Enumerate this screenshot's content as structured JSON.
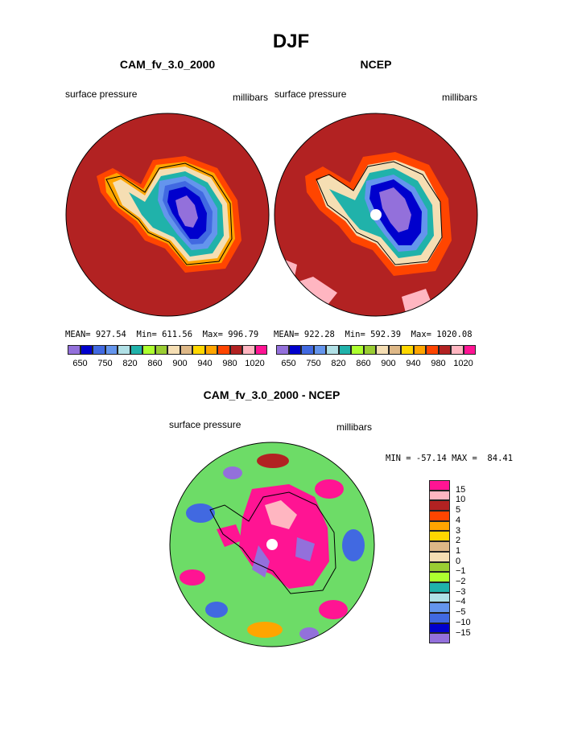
{
  "page": {
    "title": "DJF"
  },
  "panels": [
    {
      "title": "CAM_fv_3.0_2000",
      "left_label": "surface pressure",
      "right_label": "millibars",
      "stats": "MEAN= 927.54  Min= 611.56  Max= 996.79"
    },
    {
      "title": "NCEP",
      "left_label": "surface pressure",
      "right_label": "millibars",
      "stats": "MEAN= 922.28  Min= 592.39  Max= 1020.08"
    },
    {
      "title": "CAM_fv_3.0_2000 - NCEP",
      "left_label": "surface pressure",
      "right_label": "millibars",
      "stats": "MIN = -57.14 MAX =  84.41"
    }
  ],
  "legend_pressure": {
    "colors": [
      "#9370db",
      "#0000cd",
      "#4169e1",
      "#6495ed",
      "#b0e0e6",
      "#20b2aa",
      "#adff2f",
      "#9acd32",
      "#f5deb3",
      "#deb887",
      "#ffd700",
      "#ffa500",
      "#ff4500",
      "#b22222",
      "#ffb6c1",
      "#ff1493"
    ],
    "tick_labels": [
      "650",
      "750",
      "820",
      "860",
      "900",
      "940",
      "980",
      "1020"
    ]
  },
  "legend_diff": {
    "colors": [
      "#ff1493",
      "#ffb6c1",
      "#b22222",
      "#ff4500",
      "#ffa500",
      "#ffd700",
      "#deb887",
      "#f5deb3",
      "#9acd32",
      "#adff2f",
      "#20b2aa",
      "#b0e0e6",
      "#6495ed",
      "#4169e1",
      "#0000cd",
      "#9370db"
    ],
    "labels": [
      "15",
      "10",
      "5",
      "4",
      "3",
      "2",
      "1",
      "0",
      "−1",
      "−2",
      "−3",
      "−4",
      "−5",
      "−10",
      "−15"
    ]
  }
}
